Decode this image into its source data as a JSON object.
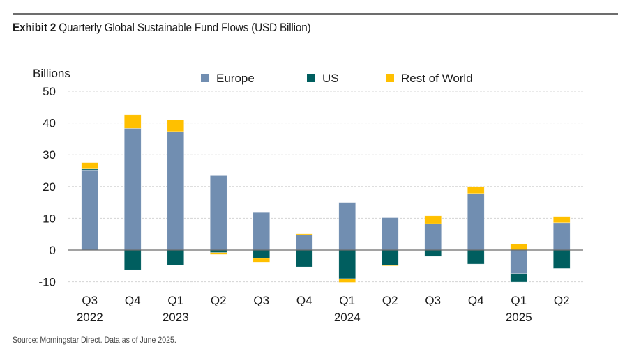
{
  "header": {
    "exhibit_label": "Exhibit 2",
    "title": "Quarterly Global Sustainable Fund Flows (USD Billion)"
  },
  "footer": {
    "source": "Source: Morningstar Direct. Data as of June 2025."
  },
  "chart_data": {
    "type": "bar",
    "stacked": true,
    "title": "Quarterly Global Sustainable Fund Flows (USD Billion)",
    "ylabel": "Billions",
    "xlabel": "",
    "ylim": [
      -10,
      50
    ],
    "yticks": [
      50,
      40,
      30,
      20,
      10,
      0,
      -10
    ],
    "grid": true,
    "legend_position": "top-center",
    "categories": [
      "Q3 2022",
      "Q4 2022",
      "Q1 2023",
      "Q2 2023",
      "Q3 2023",
      "Q4 2023",
      "Q1 2024",
      "Q2 2024",
      "Q3 2024",
      "Q4 2024",
      "Q1 2025",
      "Q2 2025"
    ],
    "category_labels": [
      {
        "quarter": "Q3",
        "year": "2022"
      },
      {
        "quarter": "Q4",
        "year": ""
      },
      {
        "quarter": "Q1",
        "year": "2023"
      },
      {
        "quarter": "Q2",
        "year": ""
      },
      {
        "quarter": "Q3",
        "year": ""
      },
      {
        "quarter": "Q4",
        "year": ""
      },
      {
        "quarter": "Q1",
        "year": "2024"
      },
      {
        "quarter": "Q2",
        "year": ""
      },
      {
        "quarter": "Q3",
        "year": ""
      },
      {
        "quarter": "Q4",
        "year": ""
      },
      {
        "quarter": "Q1",
        "year": "2025"
      },
      {
        "quarter": "Q2",
        "year": ""
      }
    ],
    "series": [
      {
        "name": "Europe",
        "color": "#718eb1",
        "values": [
          25.2,
          38.3,
          37.3,
          23.6,
          11.8,
          4.8,
          15.0,
          10.2,
          8.3,
          17.8,
          -7.4,
          8.6
        ]
      },
      {
        "name": "US",
        "color": "#005e5f",
        "values": [
          0.5,
          -6.2,
          -4.8,
          -0.8,
          -2.6,
          -5.3,
          -9.0,
          -4.8,
          -2.0,
          -4.4,
          -2.7,
          -5.8
        ]
      },
      {
        "name": "Rest of World",
        "color": "#ffc000",
        "values": [
          1.8,
          4.3,
          3.7,
          -0.6,
          -1.2,
          0.3,
          -1.2,
          -0.2,
          2.5,
          2.2,
          1.9,
          2.0
        ]
      }
    ]
  }
}
